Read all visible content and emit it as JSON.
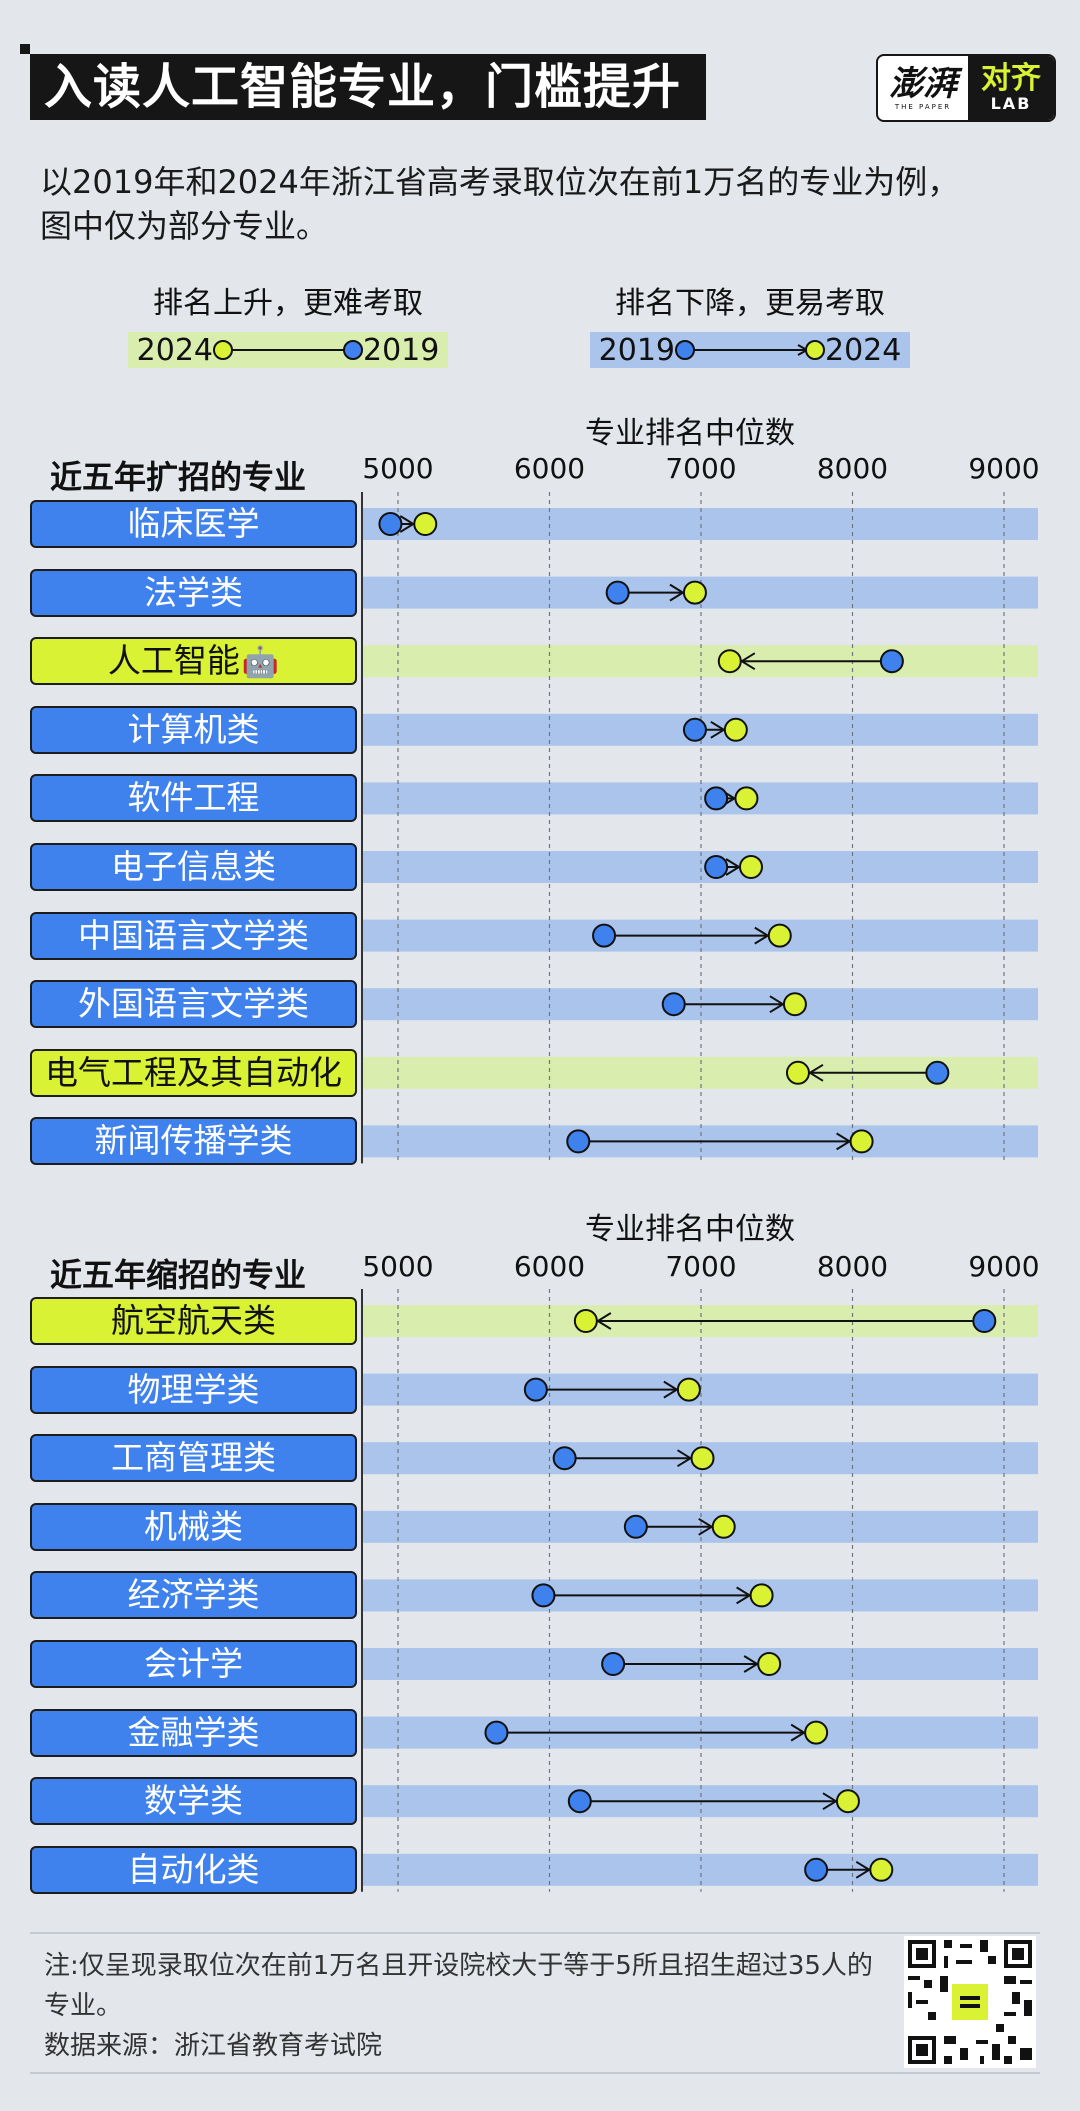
{
  "title": "入读人工智能专业，门槛提升",
  "logo": {
    "name": "澎湃",
    "sub": "THE PAPER",
    "lab_name": "对齐",
    "lab_sub": "LAB"
  },
  "subtitle_lines": [
    "以2019年和2024年浙江省高考录取位次在前1万名的专业为例，",
    "图中仅为部分专业。"
  ],
  "legend": {
    "up": {
      "caption": "排名上升，更难考取",
      "left_year": "2024",
      "right_year": "2019"
    },
    "down": {
      "caption": "排名下降，更易考取",
      "left_year": "2019",
      "right_year": "2024"
    }
  },
  "colors": {
    "year2019": "#3f82ee",
    "year2024": "#d9f233",
    "down_band": "#aac4ec",
    "up_band": "#d9edae",
    "up_label": "#d9f233",
    "down_label": "#3f82ee"
  },
  "robot_icon": "🤖",
  "chart_data": [
    {
      "type": "dumbbell",
      "section": "近五年扩招的专业",
      "axis_title": "专业排名中位数",
      "ticks": [
        5000,
        6000,
        7000,
        8000,
        9000
      ],
      "xlim": [
        4850,
        9200
      ],
      "series_years": [
        "2019",
        "2024"
      ],
      "rows": [
        {
          "label": "临床医学",
          "v2019": 4950,
          "v2024": 5180
        },
        {
          "label": "法学类",
          "v2019": 6450,
          "v2024": 6960
        },
        {
          "label": "人工智能",
          "v2019": 8260,
          "v2024": 7190,
          "icon": "robot-icon"
        },
        {
          "label": "计算机类",
          "v2019": 6960,
          "v2024": 7230
        },
        {
          "label": "软件工程",
          "v2019": 7100,
          "v2024": 7300
        },
        {
          "label": "电子信息类",
          "v2019": 7100,
          "v2024": 7330
        },
        {
          "label": "中国语言文学类",
          "v2019": 6360,
          "v2024": 7520
        },
        {
          "label": "外国语言文学类",
          "v2019": 6820,
          "v2024": 7620
        },
        {
          "label": "电气工程及其自动化",
          "v2019": 8560,
          "v2024": 7640
        },
        {
          "label": "新闻传播学类",
          "v2019": 6190,
          "v2024": 8060
        }
      ]
    },
    {
      "type": "dumbbell",
      "section": "近五年缩招的专业",
      "axis_title": "专业排名中位数",
      "ticks": [
        5000,
        6000,
        7000,
        8000,
        9000
      ],
      "xlim": [
        4850,
        9200
      ],
      "series_years": [
        "2019",
        "2024"
      ],
      "rows": [
        {
          "label": "航空航天类",
          "v2019": 8870,
          "v2024": 6240
        },
        {
          "label": "物理学类",
          "v2019": 5910,
          "v2024": 6920
        },
        {
          "label": "工商管理类",
          "v2019": 6100,
          "v2024": 7010
        },
        {
          "label": "机械类",
          "v2019": 6570,
          "v2024": 7150
        },
        {
          "label": "经济学类",
          "v2019": 5960,
          "v2024": 7400
        },
        {
          "label": "会计学",
          "v2019": 6420,
          "v2024": 7450
        },
        {
          "label": "金融学类",
          "v2019": 5650,
          "v2024": 7760
        },
        {
          "label": "数学类",
          "v2019": 6200,
          "v2024": 7970
        },
        {
          "label": "自动化类",
          "v2019": 7760,
          "v2024": 8190
        }
      ]
    }
  ],
  "note": "注:仅呈现录取位次在前1万名且开设院校大于等于5所且招生超过35人的专业。",
  "source": "数据来源：浙江省教育考试院"
}
